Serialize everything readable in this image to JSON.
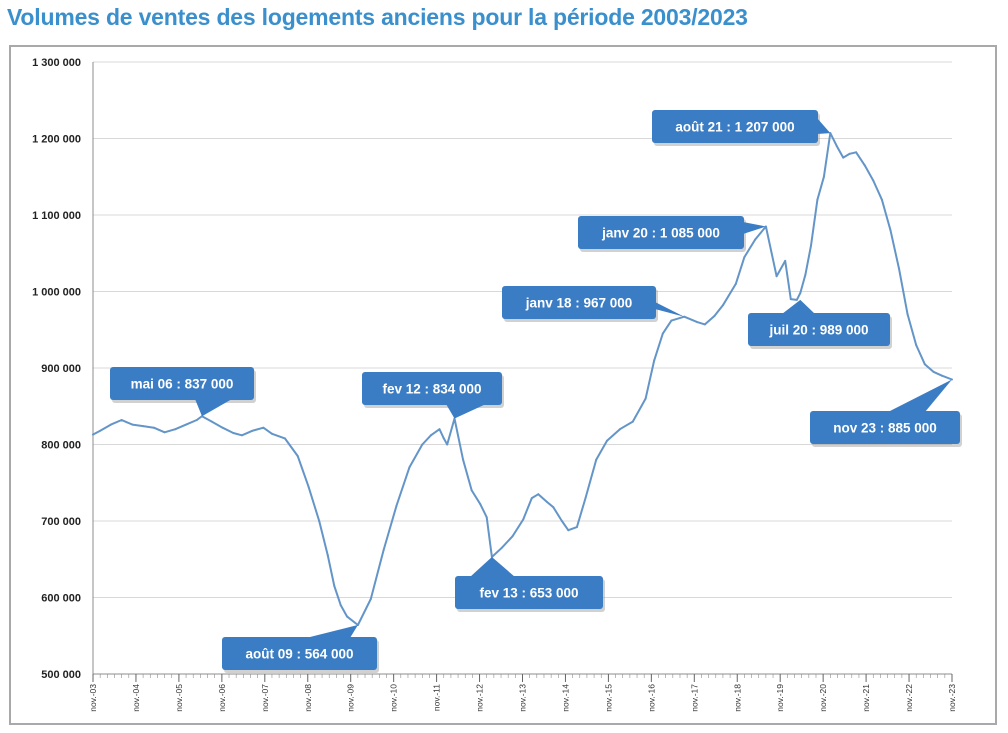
{
  "title": "Volumes de ventes des logements anciens pour la période 2003/2023",
  "colors": {
    "title": "#3a8fcd",
    "line": "#6495c8",
    "callout": "#3b7dc4",
    "grid": "#d8d8d8"
  },
  "chart_data": {
    "type": "line",
    "title": "Volumes de ventes des logements anciens pour la période 2003/2023",
    "xlabel": "",
    "ylabel": "",
    "ylim": [
      500000,
      1300000
    ],
    "xlim": [
      2003.833,
      2023.833
    ],
    "y_ticks": [
      "1 300 000",
      "1 200 000",
      "1 100 000",
      "1 000 000",
      "900 000",
      "800 000",
      "700 000",
      "600 000",
      "500 000"
    ],
    "y_tick_values": [
      1300000,
      1200000,
      1100000,
      1000000,
      900000,
      800000,
      700000,
      600000,
      500000
    ],
    "x_ticks": [
      "nov.-03",
      "nov.-04",
      "nov.-05",
      "nov.-06",
      "nov.-07",
      "nov.-08",
      "nov.-09",
      "nov.-10",
      "nov.-11",
      "nov.-12",
      "nov.-13",
      "nov.-14",
      "nov.-15",
      "nov.-16",
      "nov.-17",
      "nov.-18",
      "nov.-19",
      "nov.-20",
      "nov.-21",
      "nov.-22",
      "nov.-23"
    ],
    "x_tick_values": [
      2003.833,
      2004.833,
      2005.833,
      2006.833,
      2007.833,
      2008.833,
      2009.833,
      2010.833,
      2011.833,
      2012.833,
      2013.833,
      2014.833,
      2015.833,
      2016.833,
      2017.833,
      2018.833,
      2019.833,
      2020.833,
      2021.833,
      2022.833,
      2023.833
    ],
    "series": [
      {
        "name": "Volumes de ventes",
        "x": [
          2003.83,
          2004.0,
          2004.25,
          2004.5,
          2004.75,
          2005.0,
          2005.25,
          2005.5,
          2005.75,
          2006.0,
          2006.25,
          2006.37,
          2006.6,
          2006.85,
          2007.1,
          2007.3,
          2007.55,
          2007.8,
          2008.0,
          2008.3,
          2008.6,
          2008.85,
          2009.1,
          2009.3,
          2009.45,
          2009.6,
          2009.75,
          2010.0,
          2010.3,
          2010.6,
          2010.9,
          2011.2,
          2011.5,
          2011.7,
          2011.9,
          2012.0,
          2012.08,
          2012.25,
          2012.45,
          2012.65,
          2012.85,
          2013.0,
          2013.12,
          2013.35,
          2013.6,
          2013.85,
          2014.05,
          2014.2,
          2014.4,
          2014.55,
          2014.75,
          2014.9,
          2015.1,
          2015.3,
          2015.55,
          2015.8,
          2016.1,
          2016.4,
          2016.7,
          2016.9,
          2017.1,
          2017.3,
          2017.6,
          2017.9,
          2018.08,
          2018.3,
          2018.5,
          2018.8,
          2019.0,
          2019.25,
          2019.5,
          2019.75,
          2019.95,
          2020.08,
          2020.22,
          2020.3,
          2020.42,
          2020.55,
          2020.7,
          2020.85,
          2021.0,
          2021.15,
          2021.3,
          2021.45,
          2021.6,
          2021.8,
          2022.0,
          2022.2,
          2022.4,
          2022.6,
          2022.8,
          2023.0,
          2023.2,
          2023.4,
          2023.6,
          2023.833
        ],
        "values": [
          813000,
          818000,
          826000,
          832000,
          826000,
          824000,
          822000,
          816000,
          820000,
          826000,
          832000,
          837000,
          830000,
          822000,
          815000,
          812000,
          818000,
          822000,
          814000,
          808000,
          785000,
          745000,
          700000,
          655000,
          615000,
          590000,
          575000,
          564000,
          598000,
          662000,
          720000,
          770000,
          800000,
          812000,
          820000,
          808000,
          800000,
          834000,
          780000,
          740000,
          722000,
          705000,
          653000,
          665000,
          680000,
          702000,
          730000,
          735000,
          725000,
          718000,
          700000,
          688000,
          692000,
          730000,
          780000,
          805000,
          820000,
          830000,
          860000,
          910000,
          945000,
          962000,
          967000,
          960000,
          957000,
          968000,
          982000,
          1010000,
          1045000,
          1068000,
          1085000,
          1020000,
          1040000,
          990000,
          989000,
          998000,
          1022000,
          1060000,
          1120000,
          1150000,
          1207000,
          1190000,
          1175000,
          1180000,
          1182000,
          1165000,
          1145000,
          1120000,
          1080000,
          1030000,
          970000,
          930000,
          905000,
          895000,
          890000,
          885000
        ]
      }
    ],
    "annotations": [
      {
        "text": "mai 06 : 837 000",
        "x": 2006.37,
        "y": 837000
      },
      {
        "text": "août 09 : 564 000",
        "x": 2010.0,
        "y": 564000
      },
      {
        "text": "fev 12 : 834 000",
        "x": 2012.25,
        "y": 834000
      },
      {
        "text": "fev 13 : 653 000",
        "x": 2013.12,
        "y": 653000
      },
      {
        "text": "janv  18 : 967 000",
        "x": 2017.6,
        "y": 967000
      },
      {
        "text": "janv 20 : 1 085 000",
        "x": 2019.5,
        "y": 1085000
      },
      {
        "text": "juil 20 : 989 000",
        "x": 2020.3,
        "y": 989000
      },
      {
        "text": "août 21 : 1 207 000",
        "x": 2021.0,
        "y": 1207000
      },
      {
        "text": "nov 23 : 885 000",
        "x": 2023.833,
        "y": 885000
      }
    ]
  }
}
